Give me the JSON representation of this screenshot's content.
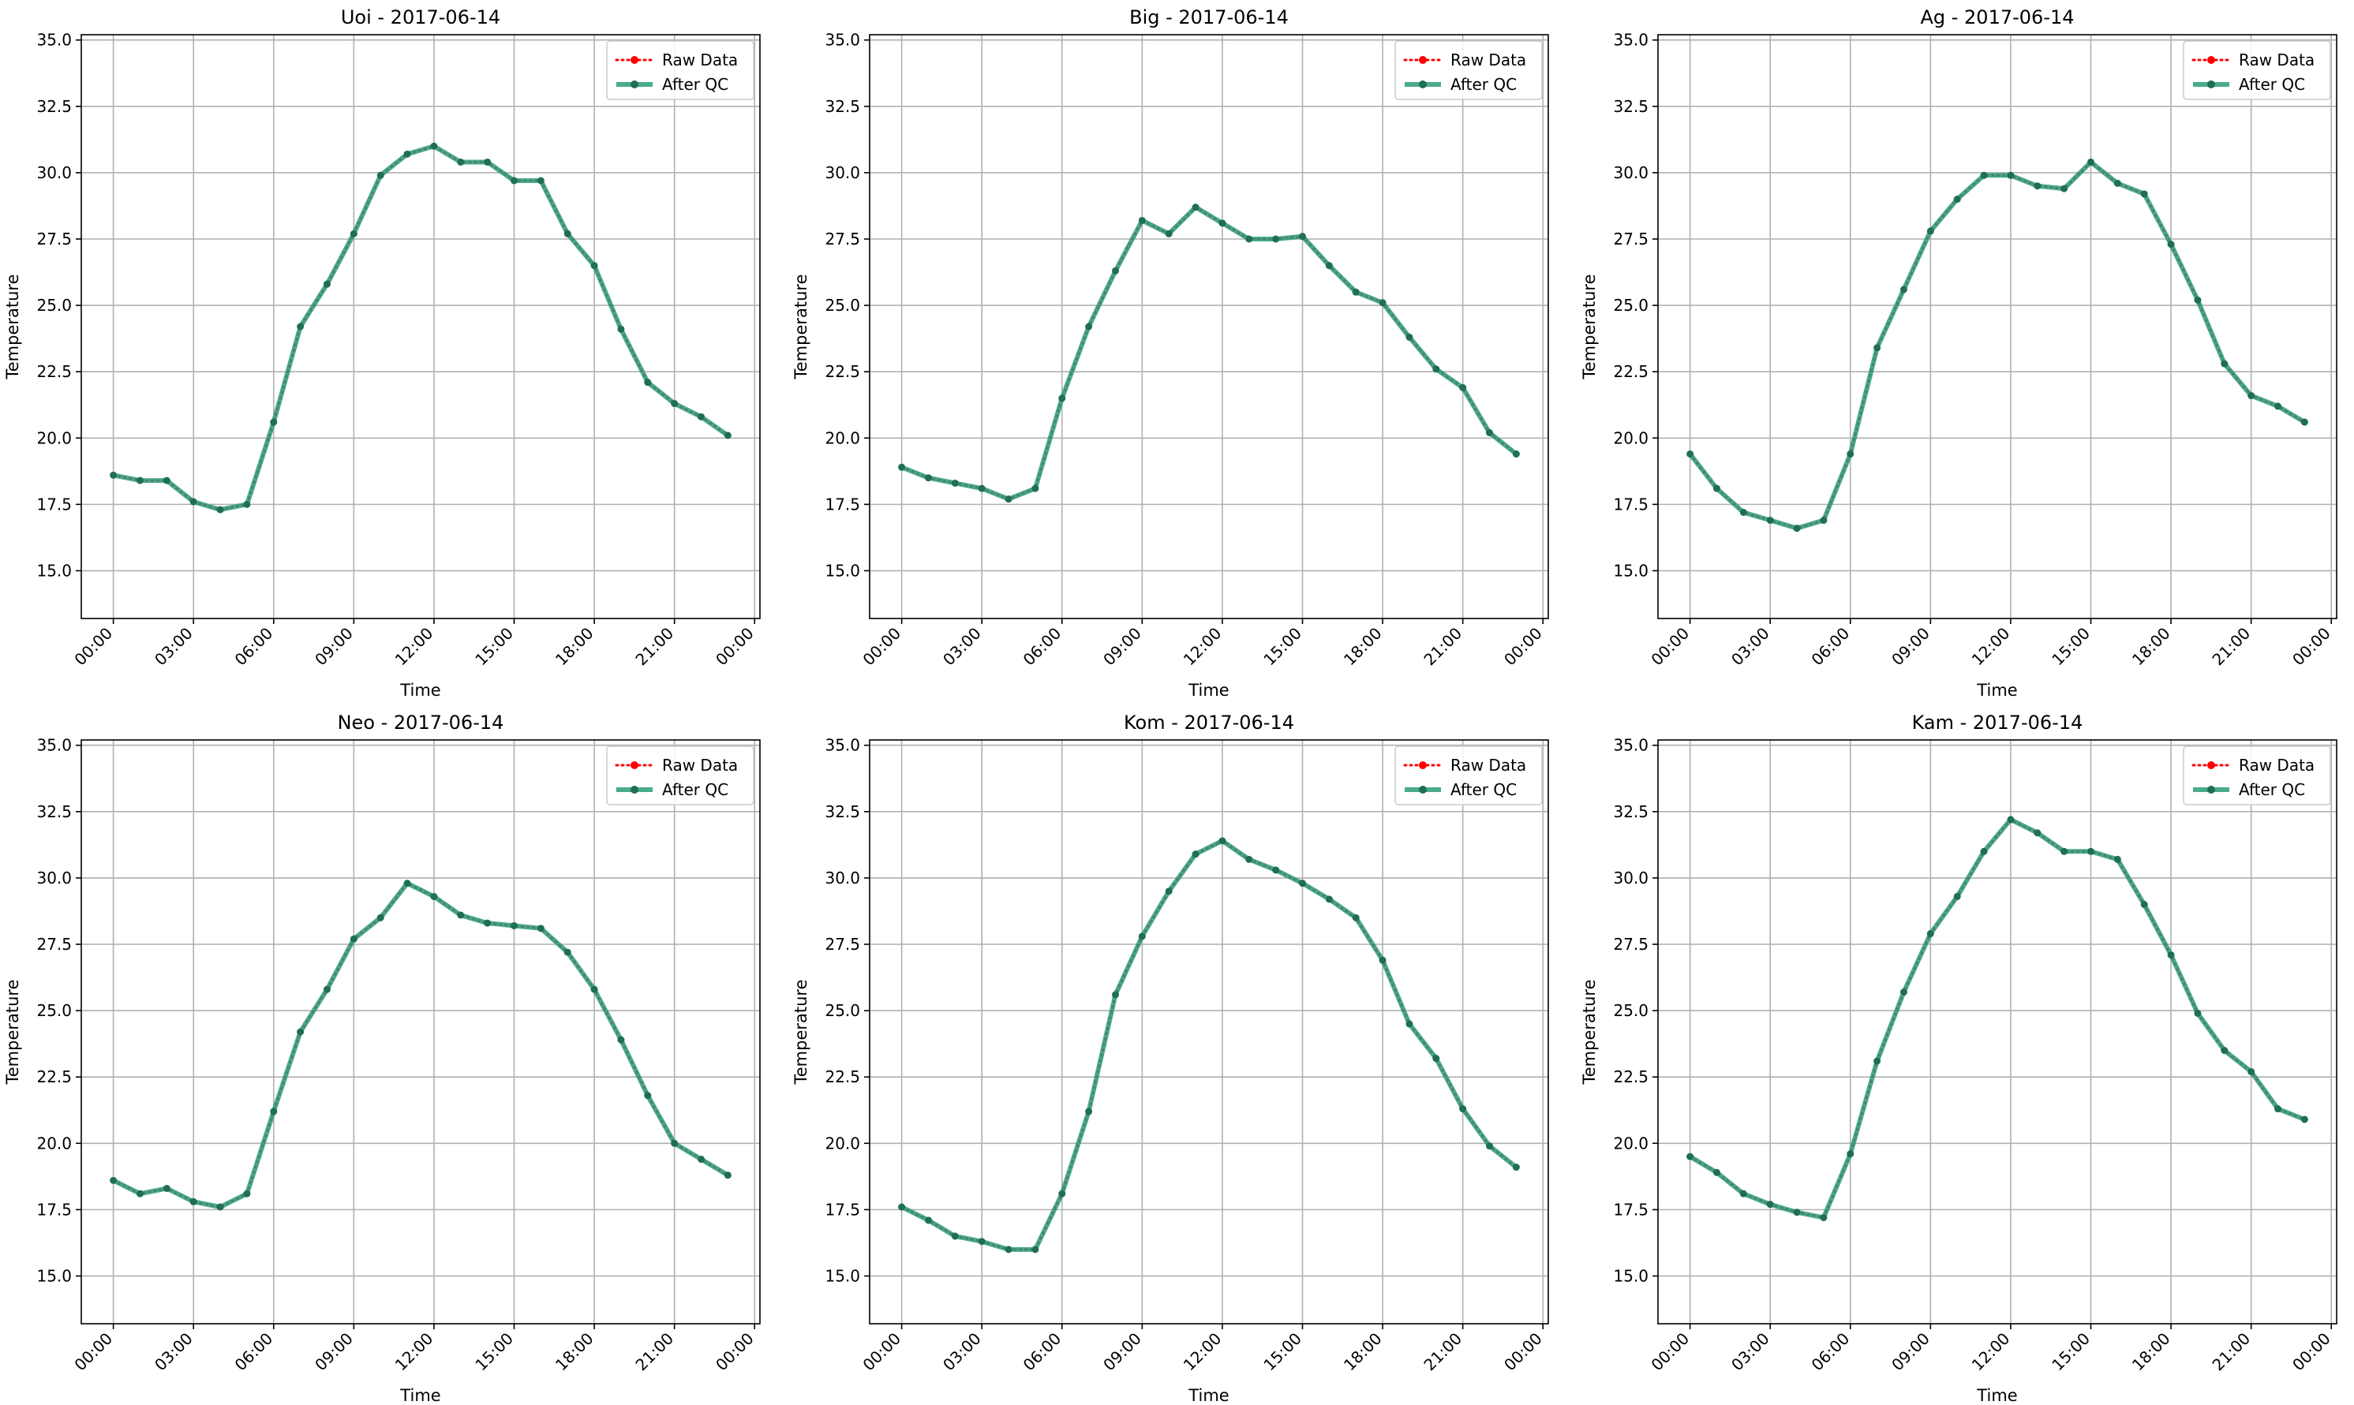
{
  "chart_data": [
    {
      "type": "line",
      "title": "Uoi - 2017-06-14",
      "xlabel": "Time",
      "ylabel": "Temperature",
      "ylim": [
        13.2,
        35.2
      ],
      "yticks": [
        15.0,
        17.5,
        20.0,
        22.5,
        25.0,
        27.5,
        30.0,
        32.5,
        35.0
      ],
      "ytick_labels": [
        "15.0",
        "17.5",
        "20.0",
        "22.5",
        "25.0",
        "27.5",
        "30.0",
        "32.5",
        "35.0"
      ],
      "xlim": [
        -1.2,
        24.2
      ],
      "xticks": [
        0,
        3,
        6,
        9,
        12,
        15,
        18,
        21,
        24
      ],
      "xtick_labels": [
        "00:00",
        "03:00",
        "06:00",
        "09:00",
        "12:00",
        "15:00",
        "18:00",
        "21:00",
        "00:00"
      ],
      "grid": true,
      "legend_position": "top-right",
      "x": [
        0,
        1,
        2,
        3,
        4,
        5,
        6,
        7,
        8,
        9,
        10,
        11,
        12,
        13,
        14,
        15,
        16,
        17,
        18,
        19,
        20,
        21,
        22,
        23
      ],
      "series": [
        {
          "name": "Raw Data",
          "color": "#ff0000",
          "style": "dotted",
          "marker": "circle",
          "values": [
            18.6,
            18.4,
            18.4,
            17.6,
            17.3,
            17.5,
            20.6,
            24.2,
            25.8,
            27.7,
            29.9,
            30.7,
            31.0,
            30.4,
            30.4,
            29.7,
            29.7,
            27.7,
            26.5,
            24.1,
            22.1,
            21.3,
            20.8,
            20.1
          ]
        },
        {
          "name": "After QC",
          "color": "#2a9d78",
          "style": "solid",
          "marker": "circle",
          "values": [
            18.6,
            18.4,
            18.4,
            17.6,
            17.3,
            17.5,
            20.6,
            24.2,
            25.8,
            27.7,
            29.9,
            30.7,
            31.0,
            30.4,
            30.4,
            29.7,
            29.7,
            27.7,
            26.5,
            24.1,
            22.1,
            21.3,
            20.8,
            20.1
          ]
        }
      ]
    },
    {
      "type": "line",
      "title": "Big - 2017-06-14",
      "xlabel": "Time",
      "ylabel": "Temperature",
      "ylim": [
        13.2,
        35.2
      ],
      "yticks": [
        15.0,
        17.5,
        20.0,
        22.5,
        25.0,
        27.5,
        30.0,
        32.5,
        35.0
      ],
      "ytick_labels": [
        "15.0",
        "17.5",
        "20.0",
        "22.5",
        "25.0",
        "27.5",
        "30.0",
        "32.5",
        "35.0"
      ],
      "xlim": [
        -1.2,
        24.2
      ],
      "xticks": [
        0,
        3,
        6,
        9,
        12,
        15,
        18,
        21,
        24
      ],
      "xtick_labels": [
        "00:00",
        "03:00",
        "06:00",
        "09:00",
        "12:00",
        "15:00",
        "18:00",
        "21:00",
        "00:00"
      ],
      "grid": true,
      "legend_position": "top-right",
      "x": [
        0,
        1,
        2,
        3,
        4,
        5,
        6,
        7,
        8,
        9,
        10,
        11,
        12,
        13,
        14,
        15,
        16,
        17,
        18,
        19,
        20,
        21,
        22,
        23
      ],
      "series": [
        {
          "name": "Raw Data",
          "color": "#ff0000",
          "style": "dotted",
          "marker": "circle",
          "values": [
            18.9,
            18.5,
            18.3,
            18.1,
            17.7,
            18.1,
            21.5,
            24.2,
            26.3,
            28.2,
            27.7,
            28.7,
            28.1,
            27.5,
            27.5,
            27.6,
            26.5,
            25.5,
            25.1,
            23.8,
            22.6,
            21.9,
            20.2,
            19.4
          ]
        },
        {
          "name": "After QC",
          "color": "#2a9d78",
          "style": "solid",
          "marker": "circle",
          "values": [
            18.9,
            18.5,
            18.3,
            18.1,
            17.7,
            18.1,
            21.5,
            24.2,
            26.3,
            28.2,
            27.7,
            28.7,
            28.1,
            27.5,
            27.5,
            27.6,
            26.5,
            25.5,
            25.1,
            23.8,
            22.6,
            21.9,
            20.2,
            19.4
          ]
        }
      ]
    },
    {
      "type": "line",
      "title": "Ag - 2017-06-14",
      "xlabel": "Time",
      "ylabel": "Temperature",
      "ylim": [
        13.2,
        35.2
      ],
      "yticks": [
        15.0,
        17.5,
        20.0,
        22.5,
        25.0,
        27.5,
        30.0,
        32.5,
        35.0
      ],
      "ytick_labels": [
        "15.0",
        "17.5",
        "20.0",
        "22.5",
        "25.0",
        "27.5",
        "30.0",
        "32.5",
        "35.0"
      ],
      "xlim": [
        -1.2,
        24.2
      ],
      "xticks": [
        0,
        3,
        6,
        9,
        12,
        15,
        18,
        21,
        24
      ],
      "xtick_labels": [
        "00:00",
        "03:00",
        "06:00",
        "09:00",
        "12:00",
        "15:00",
        "18:00",
        "21:00",
        "00:00"
      ],
      "grid": true,
      "legend_position": "top-right",
      "x": [
        0,
        1,
        2,
        3,
        4,
        5,
        6,
        7,
        8,
        9,
        10,
        11,
        12,
        13,
        14,
        15,
        16,
        17,
        18,
        19,
        20,
        21,
        22,
        23
      ],
      "series": [
        {
          "name": "Raw Data",
          "color": "#ff0000",
          "style": "dotted",
          "marker": "circle",
          "values": [
            19.4,
            18.1,
            17.2,
            16.9,
            16.6,
            16.9,
            19.4,
            23.4,
            25.6,
            27.8,
            29.0,
            29.9,
            29.9,
            29.5,
            29.4,
            30.4,
            29.6,
            29.2,
            27.3,
            25.2,
            22.8,
            21.6,
            21.2,
            20.6
          ]
        },
        {
          "name": "After QC",
          "color": "#2a9d78",
          "style": "solid",
          "marker": "circle",
          "values": [
            19.4,
            18.1,
            17.2,
            16.9,
            16.6,
            16.9,
            19.4,
            23.4,
            25.6,
            27.8,
            29.0,
            29.9,
            29.9,
            29.5,
            29.4,
            30.4,
            29.6,
            29.2,
            27.3,
            25.2,
            22.8,
            21.6,
            21.2,
            20.6
          ]
        }
      ]
    },
    {
      "type": "line",
      "title": "Neo - 2017-06-14",
      "xlabel": "Time",
      "ylabel": "Temperature",
      "ylim": [
        13.2,
        35.2
      ],
      "yticks": [
        15.0,
        17.5,
        20.0,
        22.5,
        25.0,
        27.5,
        30.0,
        32.5,
        35.0
      ],
      "ytick_labels": [
        "15.0",
        "17.5",
        "20.0",
        "22.5",
        "25.0",
        "27.5",
        "30.0",
        "32.5",
        "35.0"
      ],
      "xlim": [
        -1.2,
        24.2
      ],
      "xticks": [
        0,
        3,
        6,
        9,
        12,
        15,
        18,
        21,
        24
      ],
      "xtick_labels": [
        "00:00",
        "03:00",
        "06:00",
        "09:00",
        "12:00",
        "15:00",
        "18:00",
        "21:00",
        "00:00"
      ],
      "grid": true,
      "legend_position": "top-right",
      "x": [
        0,
        1,
        2,
        3,
        4,
        5,
        6,
        7,
        8,
        9,
        10,
        11,
        12,
        13,
        14,
        15,
        16,
        17,
        18,
        19,
        20,
        21,
        22,
        23
      ],
      "series": [
        {
          "name": "Raw Data",
          "color": "#ff0000",
          "style": "dotted",
          "marker": "circle",
          "values": [
            18.6,
            18.1,
            18.3,
            17.8,
            17.6,
            18.1,
            21.2,
            24.2,
            25.8,
            27.7,
            28.5,
            29.8,
            29.3,
            28.6,
            28.3,
            28.2,
            28.1,
            27.2,
            25.8,
            23.9,
            21.8,
            20.0,
            19.4,
            18.8
          ]
        },
        {
          "name": "After QC",
          "color": "#2a9d78",
          "style": "solid",
          "marker": "circle",
          "values": [
            18.6,
            18.1,
            18.3,
            17.8,
            17.6,
            18.1,
            21.2,
            24.2,
            25.8,
            27.7,
            28.5,
            29.8,
            29.3,
            28.6,
            28.3,
            28.2,
            28.1,
            27.2,
            25.8,
            23.9,
            21.8,
            20.0,
            19.4,
            18.8
          ]
        }
      ]
    },
    {
      "type": "line",
      "title": "Kom - 2017-06-14",
      "xlabel": "Time",
      "ylabel": "Temperature",
      "ylim": [
        13.2,
        35.2
      ],
      "yticks": [
        15.0,
        17.5,
        20.0,
        22.5,
        25.0,
        27.5,
        30.0,
        32.5,
        35.0
      ],
      "ytick_labels": [
        "15.0",
        "17.5",
        "20.0",
        "22.5",
        "25.0",
        "27.5",
        "30.0",
        "32.5",
        "35.0"
      ],
      "xlim": [
        -1.2,
        24.2
      ],
      "xticks": [
        0,
        3,
        6,
        9,
        12,
        15,
        18,
        21,
        24
      ],
      "xtick_labels": [
        "00:00",
        "03:00",
        "06:00",
        "09:00",
        "12:00",
        "15:00",
        "18:00",
        "21:00",
        "00:00"
      ],
      "grid": true,
      "legend_position": "top-right",
      "x": [
        0,
        1,
        2,
        3,
        4,
        5,
        6,
        7,
        8,
        9,
        10,
        11,
        12,
        13,
        14,
        15,
        16,
        17,
        18,
        19,
        20,
        21,
        22,
        23
      ],
      "series": [
        {
          "name": "Raw Data",
          "color": "#ff0000",
          "style": "dotted",
          "marker": "circle",
          "values": [
            17.6,
            17.1,
            16.5,
            16.3,
            16.0,
            16.0,
            18.1,
            21.2,
            25.6,
            27.8,
            29.5,
            30.9,
            31.4,
            30.7,
            30.3,
            29.8,
            29.2,
            28.5,
            26.9,
            24.5,
            23.2,
            21.3,
            19.9,
            19.1
          ]
        },
        {
          "name": "After QC",
          "color": "#2a9d78",
          "style": "solid",
          "marker": "circle",
          "values": [
            17.6,
            17.1,
            16.5,
            16.3,
            16.0,
            16.0,
            18.1,
            21.2,
            25.6,
            27.8,
            29.5,
            30.9,
            31.4,
            30.7,
            30.3,
            29.8,
            29.2,
            28.5,
            26.9,
            24.5,
            23.2,
            21.3,
            19.9,
            19.1
          ]
        }
      ]
    },
    {
      "type": "line",
      "title": "Kam - 2017-06-14",
      "xlabel": "Time",
      "ylabel": "Temperature",
      "ylim": [
        13.2,
        35.2
      ],
      "yticks": [
        15.0,
        17.5,
        20.0,
        22.5,
        25.0,
        27.5,
        30.0,
        32.5,
        35.0
      ],
      "ytick_labels": [
        "15.0",
        "17.5",
        "20.0",
        "22.5",
        "25.0",
        "27.5",
        "30.0",
        "32.5",
        "35.0"
      ],
      "xlim": [
        -1.2,
        24.2
      ],
      "xticks": [
        0,
        3,
        6,
        9,
        12,
        15,
        18,
        21,
        24
      ],
      "xtick_labels": [
        "00:00",
        "03:00",
        "06:00",
        "09:00",
        "12:00",
        "15:00",
        "18:00",
        "21:00",
        "00:00"
      ],
      "grid": true,
      "legend_position": "top-right",
      "x": [
        0,
        1,
        2,
        3,
        4,
        5,
        6,
        7,
        8,
        9,
        10,
        11,
        12,
        13,
        14,
        15,
        16,
        17,
        18,
        19,
        20,
        21,
        22,
        23
      ],
      "series": [
        {
          "name": "Raw Data",
          "color": "#ff0000",
          "style": "dotted",
          "marker": "circle",
          "values": [
            19.5,
            18.9,
            18.1,
            17.7,
            17.4,
            17.2,
            19.6,
            23.1,
            25.7,
            27.9,
            29.3,
            31.0,
            32.2,
            31.7,
            31.0,
            31.0,
            30.7,
            29.0,
            27.1,
            24.9,
            23.5,
            22.7,
            21.3,
            20.9
          ]
        },
        {
          "name": "After QC",
          "color": "#2a9d78",
          "style": "solid",
          "marker": "circle",
          "values": [
            19.5,
            18.9,
            18.1,
            17.7,
            17.4,
            17.2,
            19.6,
            23.1,
            25.7,
            27.9,
            29.3,
            31.0,
            32.2,
            31.7,
            31.0,
            31.0,
            30.7,
            29.0,
            27.1,
            24.9,
            23.5,
            22.7,
            21.3,
            20.9
          ]
        }
      ]
    }
  ]
}
